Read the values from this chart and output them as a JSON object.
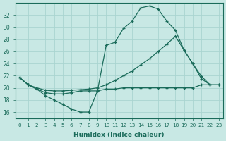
{
  "bg_color": "#c8e8e4",
  "grid_color": "#aad4d0",
  "line_color": "#1a6b5a",
  "xlim": [
    -0.5,
    23.5
  ],
  "ylim": [
    15.0,
    34.0
  ],
  "yticks": [
    16,
    18,
    20,
    22,
    24,
    26,
    28,
    30,
    32
  ],
  "xlabel": "Humidex (Indice chaleur)",
  "line1_x": [
    0,
    1,
    2,
    3,
    4,
    5,
    6,
    7,
    8,
    9,
    10,
    11,
    12,
    13,
    14,
    15,
    16,
    17,
    18,
    19,
    20,
    21,
    22
  ],
  "line1_y": [
    21.7,
    20.5,
    19.8,
    18.7,
    18.0,
    17.3,
    16.5,
    16.0,
    16.0,
    19.5,
    27.0,
    27.5,
    29.8,
    31.0,
    33.2,
    33.5,
    33.0,
    31.0,
    29.5,
    26.2,
    24.0,
    21.9,
    20.5
  ],
  "line2_x": [
    0,
    1,
    2,
    3,
    4,
    5,
    6,
    7,
    8,
    9,
    10,
    11,
    12,
    13,
    14,
    15,
    16,
    17,
    18,
    19,
    20,
    21,
    22,
    23
  ],
  "line2_y": [
    21.7,
    20.5,
    20.0,
    19.6,
    19.5,
    19.5,
    19.6,
    19.7,
    19.8,
    20.0,
    20.5,
    21.2,
    22.0,
    22.8,
    23.8,
    24.8,
    26.0,
    27.2,
    28.5,
    26.2,
    24.0,
    21.5,
    20.5,
    20.5
  ],
  "line3_x": [
    0,
    1,
    2,
    3,
    4,
    5,
    6,
    7,
    8,
    9,
    10,
    11,
    12,
    13,
    14,
    15,
    16,
    17,
    18,
    19,
    20,
    21,
    22,
    23
  ],
  "line3_y": [
    21.7,
    20.5,
    19.8,
    19.2,
    19.0,
    19.0,
    19.2,
    19.5,
    19.5,
    19.5,
    19.8,
    19.8,
    20.0,
    20.0,
    20.0,
    20.0,
    20.0,
    20.0,
    20.0,
    20.0,
    20.0,
    20.5,
    20.5,
    20.5
  ]
}
